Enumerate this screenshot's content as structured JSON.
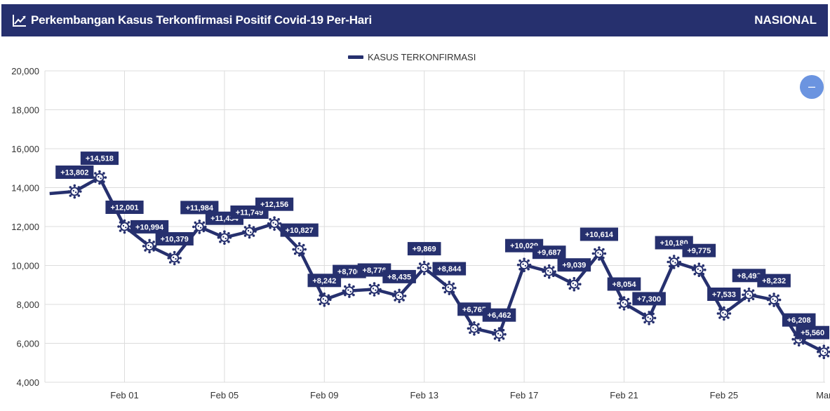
{
  "header": {
    "title": "Perkembangan Kasus Terkonfirmasi Positif Covid-19 Per-Hari",
    "region": "NASIONAL",
    "title_icon": "line-chart-icon"
  },
  "zoom_button": {
    "label": "–",
    "icon": "minus-icon"
  },
  "colors": {
    "series": "#26306e",
    "header_bg": "#26306e",
    "zoom": "#6b94e0",
    "grid": "#dcdcdc"
  },
  "chart_data": {
    "type": "line",
    "legend": {
      "label": "KASUS TERKONFIRMASI",
      "position": "top-center"
    },
    "ylim": [
      4000,
      20000
    ],
    "yticks": [
      "4,000",
      "6,000",
      "8,000",
      "10,000",
      "12,000",
      "14,000",
      "16,000",
      "18,000",
      "20,000"
    ],
    "xticks": [
      {
        "label": "Feb 01",
        "day": 1
      },
      {
        "label": "Feb 05",
        "day": 5
      },
      {
        "label": "Feb 09",
        "day": 9
      },
      {
        "label": "Feb 13",
        "day": 13
      },
      {
        "label": "Feb 17",
        "day": 17
      },
      {
        "label": "Feb 21",
        "day": 21
      },
      {
        "label": "Feb 25",
        "day": 25
      },
      {
        "label": "Mar",
        "day": 29
      }
    ],
    "grid": true,
    "series": [
      {
        "name": "KASUS TERKONFIRMASI",
        "points": [
          {
            "x": "2021-01-29",
            "y": 13695,
            "label": null
          },
          {
            "x": "2021-01-30",
            "y": 13802,
            "label": "+13,802"
          },
          {
            "x": "2021-01-31",
            "y": 14518,
            "label": "+14,518"
          },
          {
            "x": "2021-02-01",
            "y": 12001,
            "label": "+12,001"
          },
          {
            "x": "2021-02-02",
            "y": 10994,
            "label": "+10,994"
          },
          {
            "x": "2021-02-03",
            "y": 10379,
            "label": "+10,379"
          },
          {
            "x": "2021-02-04",
            "y": 11984,
            "label": "+11,984"
          },
          {
            "x": "2021-02-05",
            "y": 11434,
            "label": "+11,434"
          },
          {
            "x": "2021-02-06",
            "y": 11749,
            "label": "+11,749"
          },
          {
            "x": "2021-02-07",
            "y": 12156,
            "label": "+12,156"
          },
          {
            "x": "2021-02-08",
            "y": 10827,
            "label": "+10,827"
          },
          {
            "x": "2021-02-09",
            "y": 8242,
            "label": "+8,242"
          },
          {
            "x": "2021-02-10",
            "y": 8700,
            "label": "+8,700"
          },
          {
            "x": "2021-02-11",
            "y": 8776,
            "label": "+8,776"
          },
          {
            "x": "2021-02-12",
            "y": 8435,
            "label": "+8,435"
          },
          {
            "x": "2021-02-13",
            "y": 9869,
            "label": "+9,869"
          },
          {
            "x": "2021-02-14",
            "y": 8844,
            "label": "+8,844"
          },
          {
            "x": "2021-02-15",
            "y": 6765,
            "label": "+6,765"
          },
          {
            "x": "2021-02-16",
            "y": 6462,
            "label": "+6,462"
          },
          {
            "x": "2021-02-17",
            "y": 10029,
            "label": "+10,029"
          },
          {
            "x": "2021-02-18",
            "y": 9687,
            "label": "+9,687"
          },
          {
            "x": "2021-02-19",
            "y": 9039,
            "label": "+9,039"
          },
          {
            "x": "2021-02-20",
            "y": 10614,
            "label": "+10,614"
          },
          {
            "x": "2021-02-21",
            "y": 8054,
            "label": "+8,054"
          },
          {
            "x": "2021-02-22",
            "y": 7300,
            "label": "+7,300"
          },
          {
            "x": "2021-02-23",
            "y": 10180,
            "label": "+10,180"
          },
          {
            "x": "2021-02-24",
            "y": 9775,
            "label": "+9,775"
          },
          {
            "x": "2021-02-25",
            "y": 7533,
            "label": "+7,533"
          },
          {
            "x": "2021-02-26",
            "y": 8493,
            "label": "+8,493"
          },
          {
            "x": "2021-02-27",
            "y": 8232,
            "label": "+8,232"
          },
          {
            "x": "2021-02-28",
            "y": 6208,
            "label": "+6,208"
          },
          {
            "x": "2021-03-01",
            "y": 5560,
            "label": "+5,560"
          }
        ]
      }
    ]
  }
}
